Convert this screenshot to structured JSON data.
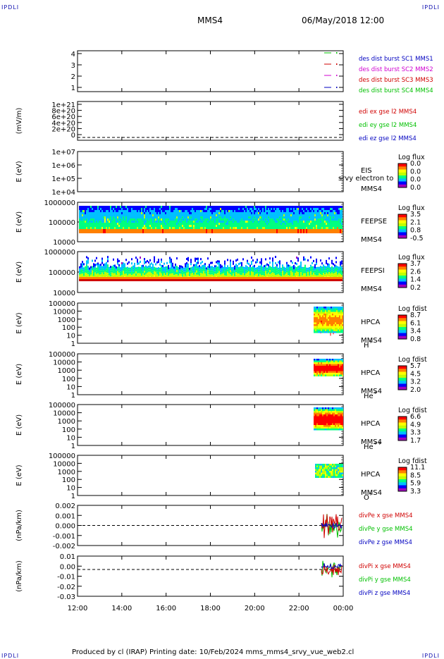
{
  "header": {
    "corner_label": "IPDLI",
    "spacecraft": "MMS4",
    "date": "06/May/2018 12:00"
  },
  "footer": {
    "text": "Produced by cl (IRAP)    Printing date: 10/Feb/2024    mms_mms4_srvy_vue_web2.cl"
  },
  "colors": {
    "black": "#000000",
    "green": "#00c000",
    "magenta": "#d000d0",
    "red": "#d00000",
    "blue": "#0000c0",
    "colorbar": [
      "#a000c0",
      "#0000ff",
      "#00c0ff",
      "#00ff80",
      "#c0ff00",
      "#ffff00",
      "#ff8000",
      "#ff0000"
    ]
  },
  "chart_data": [
    {
      "type": "line",
      "ylim": [
        0.5,
        4.5
      ],
      "y_ticks": [
        "4",
        "3",
        "2",
        "1"
      ],
      "legend": [
        "des dist burst SC1 MMS1",
        "des dist burst SC2 MMS2",
        "des dist burst SC3 MMS3",
        "des dist burst SC4 MMS4"
      ],
      "legend_colors": [
        "#0000c0",
        "#d000d0",
        "#d00000",
        "#00c000"
      ],
      "series": [
        {
          "name": "des dist burst SC1 MMS1",
          "x": [
            "23:00",
            "23:50"
          ],
          "y": [
            4,
            4
          ]
        },
        {
          "name": "des dist burst SC2 MMS2",
          "x": [
            "23:00",
            "23:50"
          ],
          "y": [
            3,
            3
          ]
        },
        {
          "name": "des dist burst SC3 MMS3",
          "x": [
            "23:00",
            "23:50"
          ],
          "y": [
            2,
            2
          ]
        },
        {
          "name": "des dist burst SC4 MMS4",
          "x": [
            "23:00",
            "23:50"
          ],
          "y": [
            1,
            1
          ]
        }
      ]
    },
    {
      "type": "line",
      "ylabel": "(mV/m)",
      "y_ticks": [
        "1e+21",
        "8e+20",
        "6e+20",
        "4e+20",
        "2e+20",
        "0"
      ],
      "ylim": [
        0,
        1e+21
      ],
      "legend": [
        "edi ex gse l2 MMS4",
        "edi ey gse l2 MMS4",
        "edi ez gse l2 MMS4"
      ],
      "legend_colors": [
        "#d00000",
        "#00c000",
        "#0000c0"
      ],
      "reference_line": 0
    },
    {
      "type": "heatmap",
      "ylabel": "E (eV)",
      "y_ticks": [
        "1e+07",
        "1e+06",
        "1e+05",
        "1e+04"
      ],
      "instrument": "EIS",
      "overlay_text": "srvy electron to",
      "spacecraft": "MMS4",
      "colorbar_title": "Log flux",
      "colorbar_ticks": [
        "0.0",
        "0.0",
        "0.0",
        "0.0"
      ]
    },
    {
      "type": "heatmap",
      "ylabel": "E (eV)",
      "y_ticks": [
        "1000000",
        "100000",
        "10000"
      ],
      "ylim": [
        10000,
        1000000
      ],
      "instrument": "FEEPSE",
      "spacecraft": "MMS4",
      "colorbar_title": "Log flux",
      "colorbar_ticks": [
        "3.5",
        "2.1",
        "0.8",
        "-0.5"
      ]
    },
    {
      "type": "heatmap",
      "ylabel": "E (eV)",
      "y_ticks": [
        "1000000",
        "100000",
        "10000"
      ],
      "ylim": [
        10000,
        1000000
      ],
      "instrument": "FEEPSI",
      "spacecraft": "MMS4",
      "colorbar_title": "Log flux",
      "colorbar_ticks": [
        "3.7",
        "2.6",
        "1.4",
        "0.2"
      ]
    },
    {
      "type": "heatmap",
      "ylabel": "E (eV)",
      "y_ticks": [
        "100000",
        "10000",
        "1000",
        "100",
        "10",
        "1"
      ],
      "instrument": "HPCA",
      "spacecraft": "MMS4",
      "species": "H",
      "species_sup": "+",
      "colorbar_title": "Log fdist",
      "colorbar_ticks": [
        "8.7",
        "6.1",
        "3.4",
        "0.8"
      ]
    },
    {
      "type": "heatmap",
      "ylabel": "E (eV)",
      "y_ticks": [
        "100000",
        "10000",
        "1000",
        "100",
        "10",
        "1"
      ],
      "instrument": "HPCA",
      "spacecraft": "MMS4",
      "species": "He",
      "species_sup": "+",
      "colorbar_title": "Log fdist",
      "colorbar_ticks": [
        "5.7",
        "4.5",
        "3.2",
        "2.0"
      ]
    },
    {
      "type": "heatmap",
      "ylabel": "E (eV)",
      "y_ticks": [
        "100000",
        "10000",
        "1000",
        "100",
        "10",
        "1"
      ],
      "instrument": "HPCA",
      "spacecraft": "MMS4",
      "species": "He",
      "species_sup": "++",
      "colorbar_title": "Log fdist",
      "colorbar_ticks": [
        "6.6",
        "4.9",
        "3.3",
        "1.7"
      ]
    },
    {
      "type": "heatmap",
      "ylabel": "E (eV)",
      "y_ticks": [
        "100000",
        "10000",
        "1000",
        "100",
        "10",
        "1"
      ],
      "instrument": "HPCA",
      "spacecraft": "MMS4",
      "species": "O",
      "species_sup": "+",
      "colorbar_title": "Log fdist",
      "colorbar_ticks": [
        "11.1",
        "8.5",
        "5.9",
        "3.3"
      ]
    },
    {
      "type": "line",
      "ylabel": "(nPa/km)",
      "y_ticks": [
        "0.002",
        "0.001",
        "0.000",
        "-0.001",
        "-0.002"
      ],
      "ylim": [
        -0.0025,
        0.0025
      ],
      "legend": [
        "divPe x gse MMS4",
        "divPe y gse MMS4",
        "divPe z gse MMS4"
      ],
      "legend_colors": [
        "#d00000",
        "#00c000",
        "#0000c0"
      ],
      "reference_line": 0
    },
    {
      "type": "line",
      "ylabel": "(nPa/km)",
      "y_ticks": [
        "0.01",
        "0.00",
        "-0.01",
        "-0.02",
        "-0.03"
      ],
      "ylim": [
        -0.032,
        0.016
      ],
      "legend": [
        "divPi x gse MMS4",
        "divPi y gse MMS4",
        "divPi z gse MMS4"
      ],
      "legend_colors": [
        "#d00000",
        "#00c000",
        "#0000c0"
      ],
      "reference_line": 0
    }
  ],
  "x_axis": {
    "ticks": [
      "12:00",
      "14:00",
      "16:00",
      "18:00",
      "20:00",
      "22:00",
      "00:00"
    ]
  }
}
